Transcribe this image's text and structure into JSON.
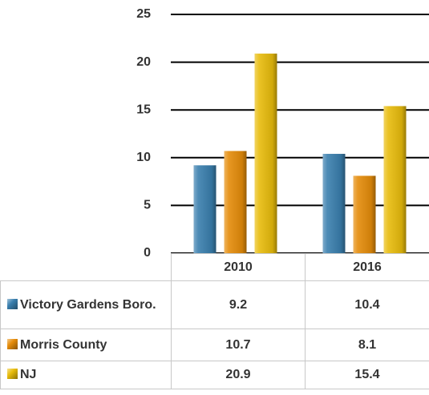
{
  "chart_data": {
    "type": "bar",
    "categories": [
      "2010",
      "2016"
    ],
    "series": [
      {
        "name": "Victory Gardens Boro.",
        "color": "#3a7fae",
        "values": [
          9.2,
          10.4
        ]
      },
      {
        "name": "Morris County",
        "color": "#e58c0a",
        "values": [
          10.7,
          8.1
        ]
      },
      {
        "name": "NJ",
        "color": "#e8bc0c",
        "values": [
          20.9,
          15.4
        ]
      }
    ],
    "ylim": [
      0,
      25
    ],
    "yticks": [
      0,
      5,
      10,
      15,
      20,
      25
    ],
    "grid": true
  }
}
